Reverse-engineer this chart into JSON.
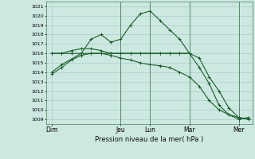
{
  "title": "Pression niveau de la mer( hPa )",
  "bg_color": "#cce8e0",
  "grid_color": "#aacccc",
  "line_color": "#1a5c2a",
  "ylim": [
    1008.5,
    1021.5
  ],
  "yticks": [
    1009,
    1010,
    1011,
    1012,
    1013,
    1014,
    1015,
    1016,
    1017,
    1018,
    1019,
    1020,
    1021
  ],
  "day_labels": [
    "Dim",
    "Jeu",
    "Lun",
    "Mar",
    "Mer"
  ],
  "day_positions": [
    0,
    3.5,
    5.0,
    7.0,
    9.5
  ],
  "xlim": [
    -0.3,
    10.2
  ],
  "series": [
    {
      "x": [
        0,
        0.5,
        1.5,
        2.0,
        2.5,
        3.0,
        3.5,
        4.0,
        4.5,
        5.0,
        5.5,
        6.0,
        6.5,
        7.0
      ],
      "y": [
        1014.0,
        1014.8,
        1016.0,
        1017.5,
        1018.0,
        1017.2,
        1017.5,
        1019.0,
        1020.2,
        1020.5,
        1019.5,
        1018.5,
        1017.5,
        1016.0
      ]
    },
    {
      "x": [
        0,
        0.5,
        1.0,
        1.5,
        2.0,
        2.5,
        3.0,
        3.5,
        4.0,
        4.5,
        5.0,
        5.5,
        6.0,
        6.5,
        7.0,
        7.5,
        8.0,
        8.5,
        9.0,
        9.5,
        10.0
      ],
      "y": [
        1016.0,
        1016.0,
        1016.0,
        1016.0,
        1016.0,
        1016.0,
        1016.0,
        1016.0,
        1016.0,
        1016.0,
        1016.0,
        1016.0,
        1016.0,
        1016.0,
        1016.0,
        1015.5,
        1013.5,
        1012.0,
        1010.2,
        1009.2,
        1009.0
      ]
    },
    {
      "x": [
        0,
        0.5,
        1.0,
        1.5,
        2.0,
        2.5,
        3.0,
        3.5,
        4.0,
        4.5,
        5.0,
        5.5,
        6.0,
        6.5,
        7.0,
        7.5,
        8.0,
        8.5,
        9.0,
        9.5,
        10.0
      ],
      "y": [
        1013.8,
        1014.5,
        1015.3,
        1015.8,
        1016.0,
        1016.0,
        1015.8,
        1015.5,
        1015.3,
        1015.0,
        1014.8,
        1014.7,
        1014.5,
        1014.0,
        1013.5,
        1012.5,
        1011.0,
        1010.0,
        1009.5,
        1009.2,
        1009.0
      ]
    },
    {
      "x": [
        0,
        0.5,
        1.0,
        1.5,
        2.0,
        2.5,
        3.0,
        3.5,
        4.0,
        4.5,
        5.0,
        5.5,
        6.0,
        6.5,
        7.0,
        7.5,
        8.0,
        8.5,
        9.0,
        9.5,
        10.0
      ],
      "y": [
        1016.0,
        1016.0,
        1016.3,
        1016.5,
        1016.5,
        1016.3,
        1016.0,
        1016.0,
        1016.0,
        1016.0,
        1016.0,
        1016.0,
        1016.0,
        1016.0,
        1016.0,
        1014.5,
        1012.8,
        1010.5,
        1009.5,
        1009.0,
        1009.2
      ]
    }
  ],
  "vline_positions": [
    3.5,
    5.0,
    7.0,
    9.5
  ],
  "figsize": [
    3.2,
    2.0
  ],
  "dpi": 100
}
